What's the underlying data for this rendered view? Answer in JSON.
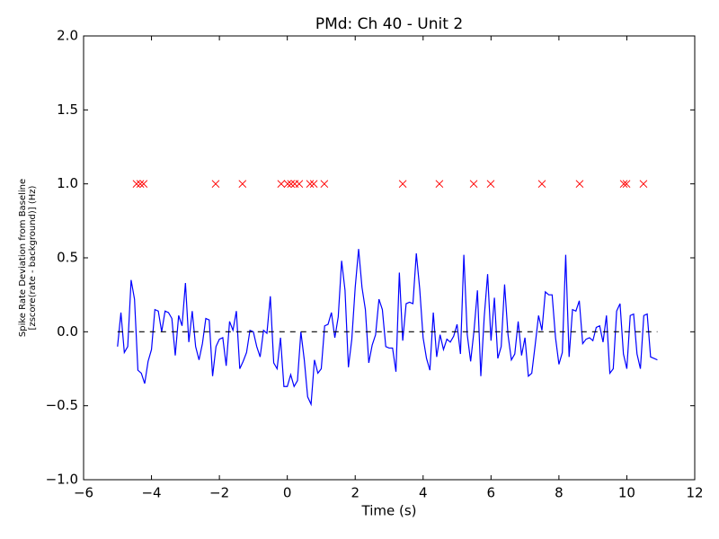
{
  "chart_data": {
    "type": "line",
    "title": "PMd: Ch 40 - Unit 2",
    "xlabel": "Time (s)",
    "ylabel": [
      "Spike Rate Deviation from Baseline",
      "[zscore(rate - background)] (Hz)"
    ],
    "xlim": [
      -6,
      12
    ],
    "ylim": [
      -1,
      2
    ],
    "xticks": [
      {
        "value": -6,
        "label": "−6"
      },
      {
        "value": -4,
        "label": "−4"
      },
      {
        "value": -2,
        "label": "−2"
      },
      0,
      2,
      4,
      6,
      8,
      10,
      12
    ],
    "yticks": [
      {
        "value": -1,
        "label": "−1.0"
      },
      {
        "value": -0.5,
        "label": "−0.5"
      },
      {
        "value": 0,
        "label": "0.0"
      },
      {
        "value": 0.5,
        "label": "0.5"
      },
      {
        "value": 1,
        "label": "1.0"
      },
      {
        "value": 1.5,
        "label": "1.5"
      },
      {
        "value": 2,
        "label": "2.0"
      }
    ],
    "grid": false,
    "series": [
      {
        "color": "#0000ff",
        "style": "solid",
        "x": [
          -5,
          -4.9,
          -4.8,
          -4.7,
          -4.6,
          -4.5,
          -4.4,
          -4.3,
          -4.2,
          -4.1,
          -4,
          -3.9,
          -3.8,
          -3.7,
          -3.6,
          -3.5,
          -3.4,
          -3.3,
          -3.2,
          -3.1,
          -3,
          -2.9,
          -2.8,
          -2.7,
          -2.6,
          -2.5,
          -2.4,
          -2.3,
          -2.2,
          -2.1,
          -2,
          -1.9,
          -1.8,
          -1.7,
          -1.6,
          -1.5,
          -1.4,
          -1.3,
          -1.2,
          -1.1,
          -1,
          -0.9,
          -0.8,
          -0.7,
          -0.6,
          -0.5,
          -0.4,
          -0.3,
          -0.2,
          -0.1,
          0,
          0.1,
          0.2,
          0.3,
          0.4,
          0.5,
          0.6,
          0.7,
          0.8,
          0.9,
          1,
          1.1,
          1.2,
          1.3,
          1.4,
          1.5,
          1.6,
          1.7,
          1.8,
          1.9,
          2,
          2.1,
          2.2,
          2.3,
          2.4,
          2.5,
          2.6,
          2.7,
          2.8,
          2.9,
          3,
          3.1,
          3.2,
          3.3,
          3.4,
          3.5,
          3.6,
          3.7,
          3.8,
          3.9,
          4,
          4.1,
          4.2,
          4.3,
          4.4,
          4.5,
          4.6,
          4.7,
          4.8,
          4.9,
          5,
          5.1,
          5.2,
          5.3,
          5.4,
          5.5,
          5.6,
          5.7,
          5.8,
          5.9,
          6,
          6.1,
          6.2,
          6.3,
          6.4,
          6.5,
          6.6,
          6.7,
          6.8,
          6.9,
          7,
          7.1,
          7.2,
          7.3,
          7.4,
          7.5,
          7.6,
          7.7,
          7.8,
          7.9,
          8,
          8.1,
          8.2,
          8.3,
          8.4,
          8.5,
          8.6,
          8.7,
          8.8,
          8.9,
          9,
          9.1,
          9.2,
          9.3,
          9.4,
          9.5,
          9.6,
          9.7,
          9.8,
          9.9,
          10,
          10.1,
          10.2,
          10.3,
          10.4,
          10.5,
          10.6,
          10.7,
          10.8,
          10.9
        ],
        "values": [
          -0.1,
          0.13,
          -0.14,
          -0.1,
          0.35,
          0.22,
          -0.26,
          -0.28,
          -0.35,
          -0.2,
          -0.12,
          0.15,
          0.14,
          0,
          0.14,
          0.13,
          0.09,
          -0.16,
          0.11,
          0.04,
          0.33,
          -0.07,
          0.14,
          -0.1,
          -0.19,
          -0.08,
          0.09,
          0.08,
          -0.3,
          -0.1,
          -0.05,
          -0.04,
          -0.23,
          0.07,
          0.01,
          0.14,
          -0.25,
          -0.2,
          -0.14,
          0.01,
          0,
          -0.1,
          -0.17,
          0.01,
          -0.01,
          0.24,
          -0.21,
          -0.25,
          -0.04,
          -0.37,
          -0.37,
          -0.29,
          -0.37,
          -0.33,
          0,
          -0.19,
          -0.44,
          -0.49,
          -0.19,
          -0.28,
          -0.25,
          0.04,
          0.05,
          0.13,
          -0.04,
          0.1,
          0.48,
          0.28,
          -0.24,
          -0.05,
          0.3,
          0.56,
          0.3,
          0.15,
          -0.21,
          -0.09,
          -0.02,
          0.22,
          0.15,
          -0.1,
          -0.11,
          -0.11,
          -0.27,
          0.4,
          -0.06,
          0.19,
          0.2,
          0.19,
          0.53,
          0.29,
          -0.04,
          -0.18,
          -0.26,
          0.13,
          -0.17,
          -0.02,
          -0.12,
          -0.05,
          -0.07,
          -0.03,
          0.05,
          -0.15,
          0.52,
          -0.02,
          -0.2,
          0.01,
          0.28,
          -0.3,
          0.1,
          0.39,
          -0.06,
          0.23,
          -0.18,
          -0.1,
          0.32,
          -0.02,
          -0.19,
          -0.15,
          0.07,
          -0.16,
          -0.04,
          -0.3,
          -0.28,
          -0.09,
          0.11,
          0.01,
          0.27,
          0.25,
          0.25,
          -0.04,
          -0.22,
          -0.14,
          0.52,
          -0.17,
          0.15,
          0.14,
          0.21,
          -0.08,
          -0.05,
          -0.04,
          -0.06,
          0.03,
          0.04,
          -0.07,
          0.11,
          -0.28,
          -0.25,
          0.14,
          0.19,
          -0.15,
          -0.25,
          0.11,
          0.12,
          -0.15,
          -0.25,
          0.11,
          0.12,
          -0.17,
          -0.18,
          -0.19
        ]
      },
      {
        "color": "#000000",
        "style": "dashed",
        "x": [
          -5,
          10.9
        ],
        "values": [
          0,
          0
        ]
      },
      {
        "color": "#ff0000",
        "style": "none",
        "marker": "x",
        "x": [
          -4.44,
          -4.33,
          -4.23,
          -2.11,
          -1.32,
          -0.18,
          0.01,
          0.11,
          0.22,
          0.35,
          0.67,
          0.78,
          1.09,
          3.4,
          4.48,
          5.49,
          5.99,
          7.5,
          8.61,
          9.91,
          9.99,
          10.49
        ],
        "values": [
          1,
          1,
          1,
          1,
          1,
          1,
          1,
          1,
          1,
          1,
          1,
          1,
          1,
          1,
          1,
          1,
          1,
          1,
          1,
          1,
          1,
          1
        ]
      }
    ]
  }
}
